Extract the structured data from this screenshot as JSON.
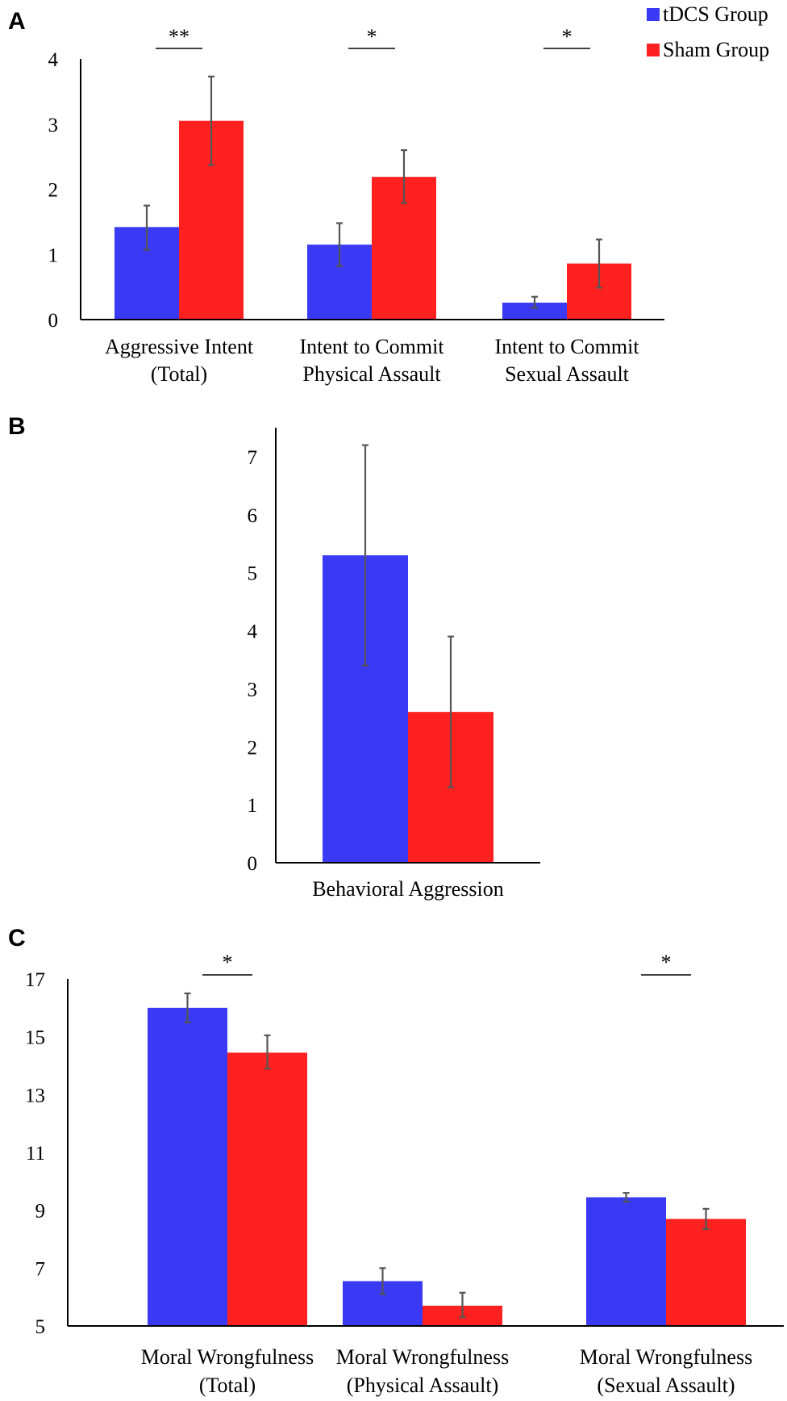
{
  "legend": {
    "items": [
      {
        "label": "tDCS Group",
        "color": "#3a3af5"
      },
      {
        "label": "Sham Group",
        "color": "#ff2020"
      }
    ]
  },
  "chart_data": [
    {
      "panel": "A",
      "type": "bar",
      "categories": [
        [
          "Aggressive Intent",
          "(Total)"
        ],
        [
          "Intent to Commit",
          "Physical Assault"
        ],
        [
          "Intent to Commit",
          "Sexual Assault"
        ]
      ],
      "series": [
        {
          "name": "tDCS Group",
          "color": "#3a3af5",
          "values": [
            1.42,
            1.15,
            0.26
          ],
          "err_low": [
            1.07,
            0.82,
            0.18
          ],
          "err_high": [
            1.75,
            1.48,
            0.35
          ]
        },
        {
          "name": "Sham Group",
          "color": "#ff2020",
          "values": [
            3.05,
            2.19,
            0.86
          ],
          "err_low": [
            2.37,
            1.79,
            0.49
          ],
          "err_high": [
            3.73,
            2.6,
            1.23
          ]
        }
      ],
      "significance": [
        "**",
        "*",
        "*"
      ],
      "yticks": [
        "0",
        "1",
        "2",
        "3",
        "4"
      ],
      "ylim": [
        0,
        4
      ],
      "grid": false
    },
    {
      "panel": "B",
      "type": "bar",
      "categories": [
        [
          "Behavioral Aggression"
        ]
      ],
      "series": [
        {
          "name": "tDCS Group",
          "color": "#3a3af5",
          "values": [
            5.3
          ],
          "err_low": [
            3.4
          ],
          "err_high": [
            7.2
          ]
        },
        {
          "name": "Sham Group",
          "color": "#ff2020",
          "values": [
            2.6
          ],
          "err_low": [
            1.3
          ],
          "err_high": [
            3.9
          ]
        }
      ],
      "significance": [
        ""
      ],
      "yticks": [
        "0",
        "1",
        "2",
        "3",
        "4",
        "5",
        "6",
        "7"
      ],
      "ylim": [
        0,
        7.5
      ],
      "grid": false
    },
    {
      "panel": "C",
      "type": "bar",
      "categories": [
        [
          "Moral Wrongfulness",
          "(Total)"
        ],
        [
          "Moral Wrongfulness",
          "(Physical Assault)"
        ],
        [
          "Moral Wrongfulness",
          "(Sexual Assault)"
        ]
      ],
      "series": [
        {
          "name": "tDCS Group",
          "color": "#3a3af5",
          "values": [
            16.0,
            6.55,
            9.45
          ],
          "err_low": [
            15.5,
            6.1,
            9.3
          ],
          "err_high": [
            16.5,
            7.0,
            9.6
          ]
        },
        {
          "name": "Sham Group",
          "color": "#ff2020",
          "values": [
            14.45,
            5.7,
            8.7
          ],
          "err_low": [
            13.9,
            5.3,
            8.35
          ],
          "err_high": [
            15.05,
            6.15,
            9.05
          ]
        }
      ],
      "significance": [
        "*",
        "",
        "*"
      ],
      "yticks": [
        "5",
        "7",
        "9",
        "11",
        "13",
        "15",
        "17"
      ],
      "ylim": [
        5,
        17
      ],
      "grid": false
    }
  ]
}
